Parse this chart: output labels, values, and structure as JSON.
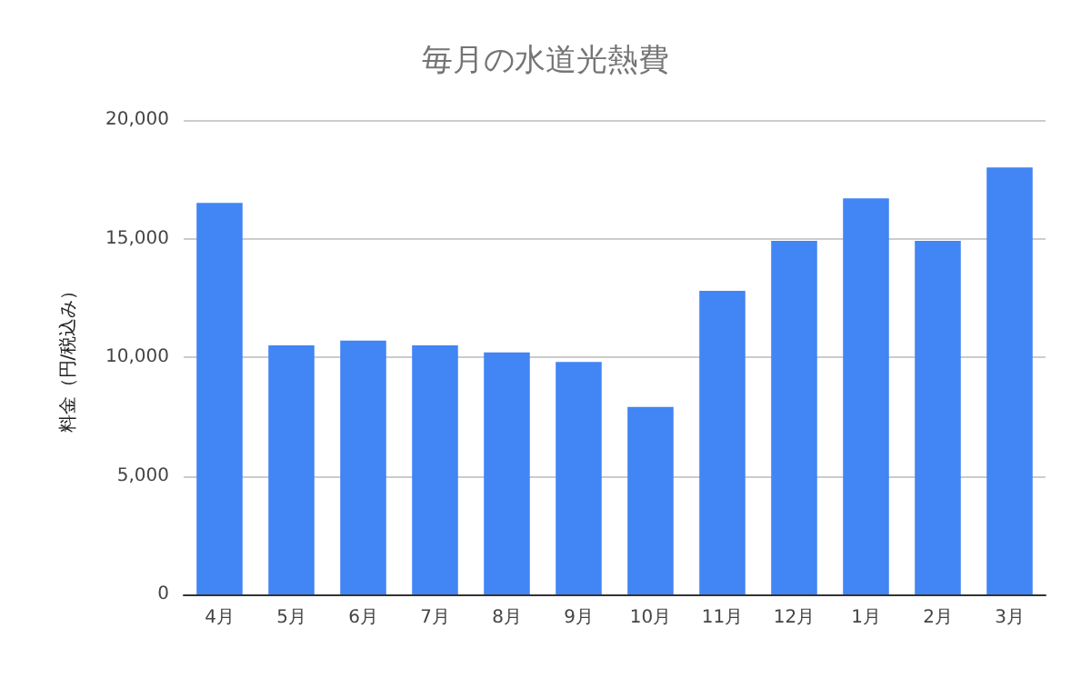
{
  "chart_data": {
    "type": "bar",
    "title": "毎月の水道光熱費",
    "ylabel": "料金（円/税込み）",
    "categories": [
      "4月",
      "5月",
      "6月",
      "7月",
      "8月",
      "9月",
      "10月",
      "11月",
      "12月",
      "1月",
      "2月",
      "3月"
    ],
    "values": [
      16500,
      10500,
      10700,
      10500,
      10200,
      9800,
      7900,
      12800,
      14900,
      16700,
      14900,
      18000
    ],
    "color": "#4285f4",
    "ylim": [
      0,
      20000
    ],
    "yticks": [
      0,
      {
        "value": 5000,
        "label": "5,000"
      },
      {
        "value": 10000,
        "label": "10,000"
      },
      {
        "value": 15000,
        "label": "15,000"
      },
      {
        "value": 20000,
        "label": "20,000"
      }
    ],
    "grid": "y"
  }
}
